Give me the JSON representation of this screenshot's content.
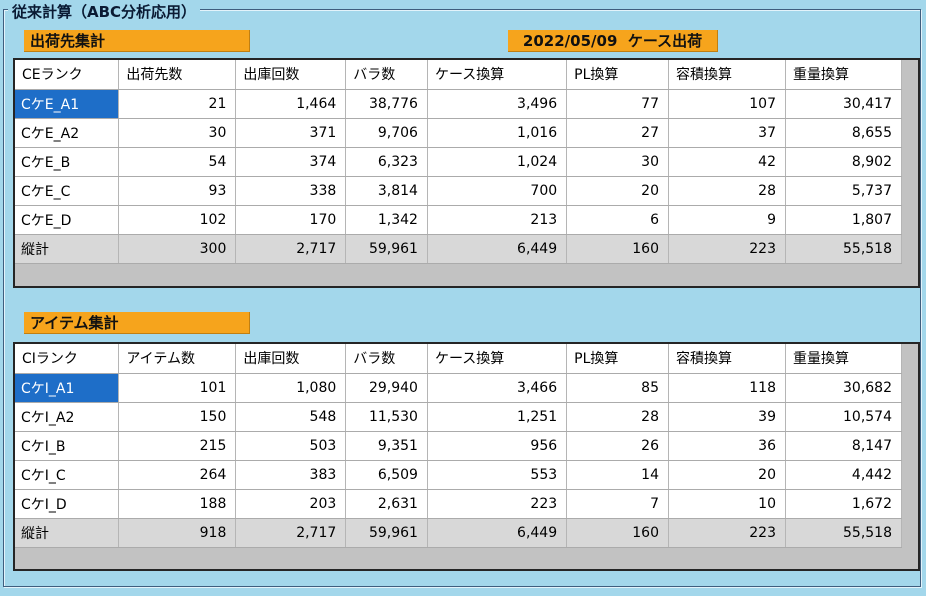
{
  "app": {
    "groupbox_title": "従来計算（ABC分析応用）",
    "date_label": "2022/05/09  ケース出荷",
    "background_color": "#A3D7EB",
    "accent_orange": "#F6A41C",
    "selection_blue": "#1E6EC8",
    "total_row_gray": "#D8D8D8"
  },
  "tables": [
    {
      "label": "出荷先集計",
      "columns": [
        "CEランク",
        "出荷先数",
        "出庫回数",
        "バラ数",
        "ケース換算",
        "PL換算",
        "容積換算",
        "重量換算"
      ],
      "rows": [
        {
          "rank": "CケE_A1",
          "values": [
            "21",
            "1,464",
            "38,776",
            "3,496",
            "77",
            "107",
            "30,417"
          ],
          "selected": true,
          "total": false
        },
        {
          "rank": "CケE_A2",
          "values": [
            "30",
            "371",
            "9,706",
            "1,016",
            "27",
            "37",
            "8,655"
          ],
          "selected": false,
          "total": false
        },
        {
          "rank": "CケE_B",
          "values": [
            "54",
            "374",
            "6,323",
            "1,024",
            "30",
            "42",
            "8,902"
          ],
          "selected": false,
          "total": false
        },
        {
          "rank": "CケE_C",
          "values": [
            "93",
            "338",
            "3,814",
            "700",
            "20",
            "28",
            "5,737"
          ],
          "selected": false,
          "total": false
        },
        {
          "rank": "CケE_D",
          "values": [
            "102",
            "170",
            "1,342",
            "213",
            "6",
            "9",
            "1,807"
          ],
          "selected": false,
          "total": false
        },
        {
          "rank": "縦計",
          "values": [
            "300",
            "2,717",
            "59,961",
            "6,449",
            "160",
            "223",
            "55,518"
          ],
          "selected": false,
          "total": true
        }
      ]
    },
    {
      "label": "アイテム集計",
      "columns": [
        "CIランク",
        "アイテム数",
        "出庫回数",
        "バラ数",
        "ケース換算",
        "PL換算",
        "容積換算",
        "重量換算"
      ],
      "rows": [
        {
          "rank": "CケI_A1",
          "values": [
            "101",
            "1,080",
            "29,940",
            "3,466",
            "85",
            "118",
            "30,682"
          ],
          "selected": true,
          "total": false
        },
        {
          "rank": "CケI_A2",
          "values": [
            "150",
            "548",
            "11,530",
            "1,251",
            "28",
            "39",
            "10,574"
          ],
          "selected": false,
          "total": false
        },
        {
          "rank": "CケI_B",
          "values": [
            "215",
            "503",
            "9,351",
            "956",
            "26",
            "36",
            "8,147"
          ],
          "selected": false,
          "total": false
        },
        {
          "rank": "CケI_C",
          "values": [
            "264",
            "383",
            "6,509",
            "553",
            "14",
            "20",
            "4,442"
          ],
          "selected": false,
          "total": false
        },
        {
          "rank": "CケI_D",
          "values": [
            "188",
            "203",
            "2,631",
            "223",
            "7",
            "10",
            "1,672"
          ],
          "selected": false,
          "total": false
        },
        {
          "rank": "縦計",
          "values": [
            "918",
            "2,717",
            "59,961",
            "6,449",
            "160",
            "223",
            "55,518"
          ],
          "selected": false,
          "total": true
        }
      ]
    }
  ]
}
